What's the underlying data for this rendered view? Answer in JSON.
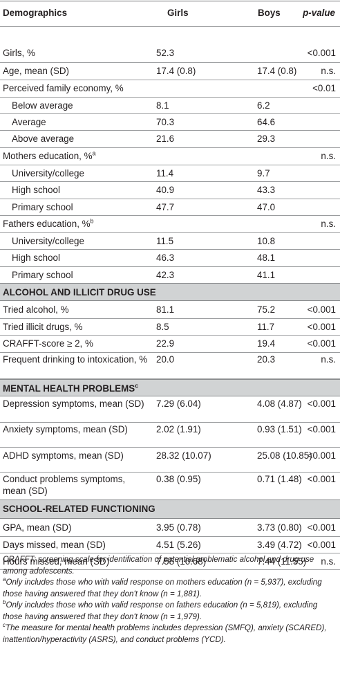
{
  "header": {
    "col0": "Demographics",
    "col1": "Girls",
    "col2": "Boys",
    "col3": "p-value"
  },
  "rows": [
    {
      "label": "Girls, %",
      "girls": "52.3",
      "boys": "",
      "p": "<0.001"
    },
    {
      "label": "Age, mean (SD)",
      "girls": "17.4 (0.8)",
      "boys": "17.4 (0.8)",
      "p": "n.s."
    },
    {
      "label": "Perceived family economy, %",
      "girls": "",
      "boys": "",
      "p": "<0.01"
    },
    {
      "label": "Below average",
      "girls": "8.1",
      "boys": "6.2",
      "p": ""
    },
    {
      "label": "Average",
      "girls": "70.3",
      "boys": "64.6",
      "p": ""
    },
    {
      "label": "Above average",
      "girls": "21.6",
      "boys": "29.3",
      "p": ""
    },
    {
      "label": "Mothers education, %",
      "sup": "a",
      "girls": "",
      "boys": "",
      "p": "n.s."
    },
    {
      "label": "University/college",
      "girls": "11.4",
      "boys": "9.7",
      "p": ""
    },
    {
      "label": "High school",
      "girls": "40.9",
      "boys": "43.3",
      "p": ""
    },
    {
      "label": "Primary school",
      "girls": "47.7",
      "boys": "47.0",
      "p": ""
    },
    {
      "label": "Fathers education, %",
      "sup": "b",
      "girls": "",
      "boys": "",
      "p": "n.s."
    },
    {
      "label": "University/college",
      "girls": "11.5",
      "boys": "10.8",
      "p": ""
    },
    {
      "label": "High school",
      "girls": "46.3",
      "boys": "48.1",
      "p": ""
    },
    {
      "label": "Primary school",
      "girls": "42.3",
      "boys": "41.1",
      "p": ""
    },
    {
      "section": "ALCOHOL AND ILLICIT DRUG USE"
    },
    {
      "label": "Tried alcohol, %",
      "girls": "81.1",
      "boys": "75.2",
      "p": "<0.001"
    },
    {
      "label": "Tried illicit drugs, %",
      "girls": "8.5",
      "boys": "11.7",
      "p": "<0.001"
    },
    {
      "label": "CRAFFT-score ≥ 2, %",
      "girls": "22.9",
      "boys": "19.4",
      "p": "<0.001"
    },
    {
      "label": "Frequent drinking to intoxication, %",
      "girls": "20.0",
      "boys": "20.3",
      "p": "n.s."
    },
    {
      "section": "MENTAL HEALTH PROBLEMS",
      "sup": "c"
    },
    {
      "label": "Depression symptoms, mean (SD)",
      "girls": "7.29 (6.04)",
      "boys": "4.08 (4.87)",
      "p": "<0.001"
    },
    {
      "label": "Anxiety symptoms, mean (SD)",
      "girls": "2.02 (1.91)",
      "boys": "0.93 (1.51)",
      "p": "<0.001"
    },
    {
      "label": "ADHD symptoms, mean (SD)",
      "girls": "28.32 (10.07)",
      "boys": "25.08 (10.85)",
      "p": "<0.001"
    },
    {
      "label": "Conduct problems symptoms, mean (SD)",
      "girls": "0.38 (0.95)",
      "boys": "0.71 (1.48)",
      "p": "<0.001"
    },
    {
      "section": "SCHOOL-RELATED FUNCTIONING"
    },
    {
      "label": "GPA, mean (SD)",
      "girls": "3.95 (0.78)",
      "boys": "3.73 (0.80)",
      "p": "<0.001"
    },
    {
      "label": "Days missed, mean (SD)",
      "girls": "4.51 (5.26)",
      "boys": "3.49 (4.72)",
      "p": "<0.001"
    },
    {
      "label": "Hours missed, mean (SD)",
      "girls": "7.58 (10.68)",
      "boys": "7.44 (11.55)",
      "p": "n.s."
    }
  ],
  "notes": [
    {
      "text": "CRAFFT: screening scale for identification of potential problematic alcohol and drug use among adolescents."
    },
    {
      "sup": "a",
      "text": "Only includes those who with valid response on mothers education (n = 5,937), excluding those having answered that they don't know (n = 1,881)."
    },
    {
      "sup": "b",
      "text": "Only includes those who with valid response on fathers education (n = 5,819), excluding those having answered that they don't know (n = 1,979)."
    },
    {
      "sup": "c",
      "text": "The measure for mental health problems includes depression (SMFQ), anxiety (SCARED), inattention/hyperactivity (ASRS), and conduct problems (YCD)."
    }
  ]
}
